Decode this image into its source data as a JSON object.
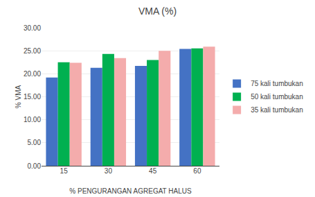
{
  "chart_data": {
    "type": "bar",
    "title": "VMA (%)",
    "xlabel": "% PENGURANGAN AGREGAT HALUS",
    "ylabel": "% VMA",
    "categories": [
      "15",
      "30",
      "45",
      "60"
    ],
    "series": [
      {
        "name": "75 kali tumbukan",
        "color": "#4472C4",
        "values": [
          19.2,
          21.3,
          21.7,
          25.4
        ]
      },
      {
        "name": "50 kali tumbukan",
        "color": "#00B050",
        "values": [
          22.5,
          24.3,
          23.0,
          25.5
        ]
      },
      {
        "name": "35 kali tumbukan",
        "color": "#F4ACAC",
        "values": [
          22.4,
          23.4,
          25.0,
          25.9
        ]
      }
    ],
    "ylim": [
      0,
      30
    ],
    "yticks": [
      {
        "value": 0,
        "label": "0.00"
      },
      {
        "value": 5,
        "label": "5.00"
      },
      {
        "value": 10,
        "label": "10.00"
      },
      {
        "value": 15,
        "label": "15.00"
      },
      {
        "value": 20,
        "label": "20.00"
      },
      {
        "value": 25,
        "label": "25.00"
      },
      {
        "value": 30,
        "label": "30.00"
      }
    ],
    "grid": true,
    "legend": "right"
  }
}
